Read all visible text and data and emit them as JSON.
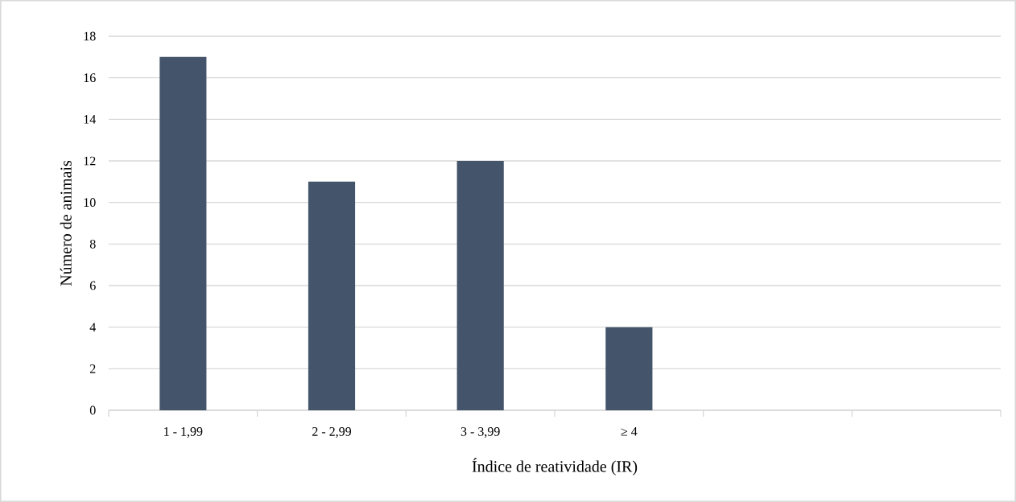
{
  "chart_data": {
    "type": "bar",
    "xlabel": "Índice de reatividade (IR)",
    "ylabel": "Número de animais",
    "categories": [
      "1 - 1,99",
      "2 - 2,99",
      "3 - 3,99",
      "≥ 4",
      null,
      null
    ],
    "values": [
      17,
      11,
      12,
      4,
      null,
      null
    ],
    "color": "#44546a",
    "ylim": [
      0,
      18
    ],
    "yticks": [
      0,
      2,
      4,
      6,
      8,
      10,
      12,
      14,
      16,
      18
    ],
    "grid": "y"
  }
}
